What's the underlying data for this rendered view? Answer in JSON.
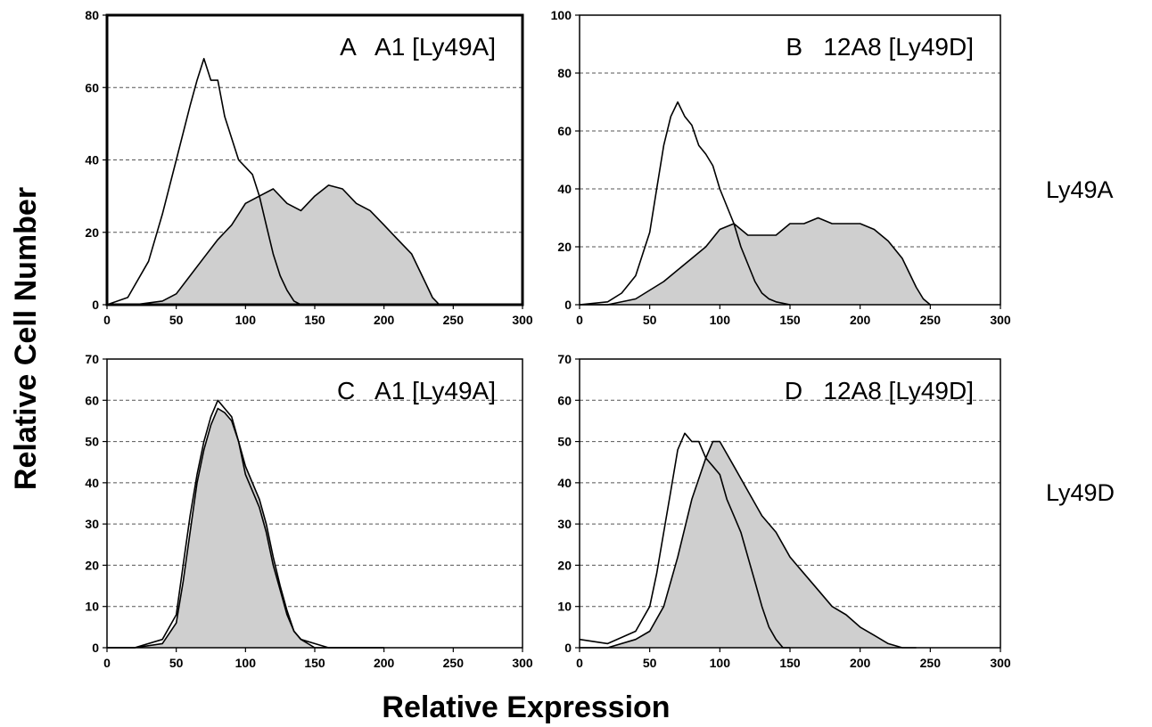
{
  "figure": {
    "ylabel": "Relative Cell Number",
    "xlabel": "Relative Expression",
    "row_labels": [
      "Ly49A",
      "Ly49D"
    ]
  },
  "colors": {
    "line": "#000000",
    "fill": "#cfcfcf",
    "grid": "#555555",
    "frame": "#000000"
  },
  "chart_data": [
    {
      "type": "area",
      "panel_label": "A",
      "title": "A   A1 [Ly49A]",
      "xlim": [
        0,
        300
      ],
      "ylim": [
        0,
        80
      ],
      "xticks": [
        0,
        50,
        100,
        150,
        200,
        250,
        300
      ],
      "yticks": [
        0,
        20,
        40,
        60,
        80
      ],
      "grid": "horizontal dashed",
      "series": [
        {
          "style": "open-outline",
          "x": [
            0,
            15,
            30,
            40,
            50,
            60,
            65,
            70,
            75,
            80,
            85,
            90,
            95,
            100,
            105,
            110,
            115,
            120,
            125,
            130,
            135,
            140,
            145
          ],
          "y": [
            0,
            2,
            12,
            25,
            40,
            55,
            62,
            68,
            62,
            62,
            52,
            46,
            40,
            38,
            36,
            30,
            22,
            14,
            8,
            4,
            1,
            0,
            0
          ]
        },
        {
          "style": "filled",
          "x": [
            0,
            20,
            40,
            50,
            60,
            70,
            80,
            90,
            100,
            110,
            120,
            130,
            140,
            150,
            160,
            170,
            180,
            190,
            200,
            210,
            220,
            230,
            235,
            240
          ],
          "y": [
            0,
            0,
            1,
            3,
            8,
            13,
            18,
            22,
            28,
            30,
            32,
            28,
            26,
            30,
            33,
            32,
            28,
            26,
            22,
            18,
            14,
            6,
            2,
            0
          ]
        }
      ]
    },
    {
      "type": "area",
      "panel_label": "B",
      "title": "B   12A8 [Ly49D]",
      "xlim": [
        0,
        300
      ],
      "ylim": [
        0,
        100
      ],
      "xticks": [
        0,
        50,
        100,
        150,
        200,
        250,
        300
      ],
      "yticks": [
        0,
        20,
        40,
        60,
        80,
        100
      ],
      "grid": "horizontal dashed",
      "series": [
        {
          "style": "open-outline",
          "x": [
            0,
            20,
            30,
            40,
            50,
            55,
            60,
            65,
            70,
            75,
            80,
            85,
            90,
            95,
            100,
            105,
            110,
            115,
            120,
            125,
            130,
            135,
            140,
            150
          ],
          "y": [
            0,
            1,
            4,
            10,
            25,
            40,
            55,
            65,
            70,
            65,
            62,
            55,
            52,
            48,
            40,
            34,
            28,
            20,
            14,
            8,
            4,
            2,
            1,
            0
          ]
        },
        {
          "style": "filled",
          "x": [
            0,
            20,
            40,
            60,
            70,
            80,
            90,
            100,
            110,
            120,
            130,
            140,
            150,
            160,
            170,
            180,
            190,
            200,
            210,
            220,
            230,
            240,
            245,
            250
          ],
          "y": [
            0,
            0,
            2,
            8,
            12,
            16,
            20,
            26,
            28,
            24,
            24,
            24,
            28,
            28,
            30,
            28,
            28,
            28,
            26,
            22,
            16,
            6,
            2,
            0
          ]
        }
      ]
    },
    {
      "type": "area",
      "panel_label": "C",
      "title": "C   A1 [Ly49A]",
      "xlim": [
        0,
        300
      ],
      "ylim": [
        0,
        70
      ],
      "xticks": [
        0,
        50,
        100,
        150,
        200,
        250,
        300
      ],
      "yticks": [
        0,
        10,
        20,
        30,
        40,
        50,
        60,
        70
      ],
      "grid": "horizontal dashed",
      "series": [
        {
          "style": "open-outline",
          "x": [
            0,
            20,
            40,
            50,
            55,
            60,
            65,
            70,
            75,
            80,
            85,
            90,
            95,
            100,
            105,
            110,
            115,
            120,
            125,
            130,
            135,
            140,
            150,
            160,
            200
          ],
          "y": [
            0,
            0,
            2,
            8,
            20,
            32,
            42,
            50,
            56,
            60,
            58,
            56,
            50,
            42,
            38,
            34,
            28,
            20,
            14,
            8,
            4,
            2,
            1,
            0,
            0
          ]
        },
        {
          "style": "filled",
          "x": [
            0,
            20,
            40,
            50,
            55,
            60,
            65,
            70,
            75,
            80,
            85,
            90,
            95,
            100,
            105,
            110,
            115,
            120,
            125,
            130,
            135,
            140,
            150,
            160,
            200
          ],
          "y": [
            0,
            0,
            1,
            6,
            16,
            28,
            40,
            48,
            54,
            58,
            57,
            55,
            50,
            44,
            40,
            36,
            30,
            22,
            15,
            9,
            4,
            2,
            0,
            0,
            0
          ]
        }
      ]
    },
    {
      "type": "area",
      "panel_label": "D",
      "title": "D   12A8 [Ly49D]",
      "xlim": [
        0,
        300
      ],
      "ylim": [
        0,
        70
      ],
      "xticks": [
        0,
        50,
        100,
        150,
        200,
        250,
        300
      ],
      "yticks": [
        0,
        10,
        20,
        30,
        40,
        50,
        60,
        70
      ],
      "grid": "horizontal dashed",
      "series": [
        {
          "style": "open-outline",
          "x": [
            0,
            20,
            40,
            50,
            55,
            60,
            65,
            70,
            75,
            80,
            85,
            90,
            95,
            100,
            105,
            110,
            115,
            120,
            125,
            130,
            135,
            140,
            145,
            150
          ],
          "y": [
            2,
            1,
            4,
            10,
            18,
            28,
            38,
            48,
            52,
            50,
            50,
            46,
            44,
            42,
            36,
            32,
            28,
            22,
            16,
            10,
            5,
            2,
            0,
            0
          ]
        },
        {
          "style": "filled",
          "x": [
            0,
            20,
            40,
            50,
            60,
            70,
            80,
            90,
            95,
            100,
            110,
            120,
            130,
            140,
            150,
            160,
            170,
            180,
            190,
            200,
            210,
            220,
            230,
            240
          ],
          "y": [
            0,
            0,
            2,
            4,
            10,
            22,
            36,
            46,
            50,
            50,
            44,
            38,
            32,
            28,
            22,
            18,
            14,
            10,
            8,
            5,
            3,
            1,
            0,
            0
          ]
        }
      ]
    }
  ]
}
